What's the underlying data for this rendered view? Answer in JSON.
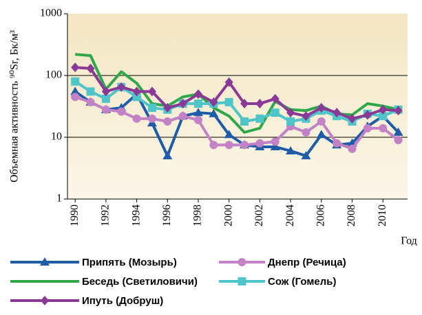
{
  "chart_data": {
    "type": "line",
    "ylabel": "Объемная активность ⁹⁰Sr, Бк/м³",
    "xlabel": "Год",
    "x": [
      1990,
      1991,
      1992,
      1993,
      1994,
      1995,
      1996,
      1997,
      1998,
      1999,
      2000,
      2001,
      2002,
      2003,
      2004,
      2005,
      2006,
      2007,
      2008,
      2009,
      2010,
      2011
    ],
    "series": [
      {
        "name": "Припять (Мозырь)",
        "color": "#1f5ca8",
        "marker": "triangle",
        "values": [
          55,
          37,
          28,
          30,
          50,
          17,
          5,
          22,
          25,
          24,
          11,
          7.5,
          7,
          7,
          6,
          5,
          11,
          7.5,
          8,
          15,
          22,
          12
        ]
      },
      {
        "name": "Днепр (Речица)",
        "color": "#c382c6",
        "marker": "circle",
        "values": [
          45,
          37,
          28,
          26,
          20,
          20,
          18,
          22,
          19,
          7.5,
          7.5,
          7.5,
          8,
          8.5,
          15,
          12,
          18,
          8,
          6.5,
          14,
          14,
          9
        ]
      },
      {
        "name": "Беседь (Светиловичи)",
        "color": "#2ea84a",
        "marker": "none",
        "values": [
          220,
          210,
          60,
          115,
          75,
          35,
          32,
          45,
          50,
          30,
          22,
          12,
          14,
          38,
          28,
          27,
          32,
          24,
          23,
          35,
          32,
          28
        ]
      },
      {
        "name": "Сож (Гомель)",
        "color": "#4fc4c9",
        "marker": "square",
        "values": [
          80,
          55,
          42,
          65,
          45,
          30,
          28,
          35,
          35,
          35,
          37,
          18,
          20,
          25,
          18,
          20,
          27,
          22,
          18,
          24,
          22,
          28
        ]
      },
      {
        "name": "Ипуть (Добруш)",
        "color": "#8a3a96",
        "marker": "diamond",
        "values": [
          135,
          130,
          55,
          65,
          55,
          55,
          30,
          35,
          50,
          37,
          78,
          35,
          35,
          42,
          25,
          22,
          30,
          25,
          20,
          23,
          28,
          27
        ]
      }
    ],
    "xlim": [
      1989.5,
      2011.6
    ],
    "xticks": [
      1990,
      1992,
      1994,
      1996,
      1998,
      2000,
      2002,
      2004,
      2006,
      2008,
      2010
    ],
    "ylim": [
      1,
      1000
    ],
    "yscale": "log",
    "yticks": [
      1,
      10,
      100,
      1000
    ],
    "grid": true
  }
}
